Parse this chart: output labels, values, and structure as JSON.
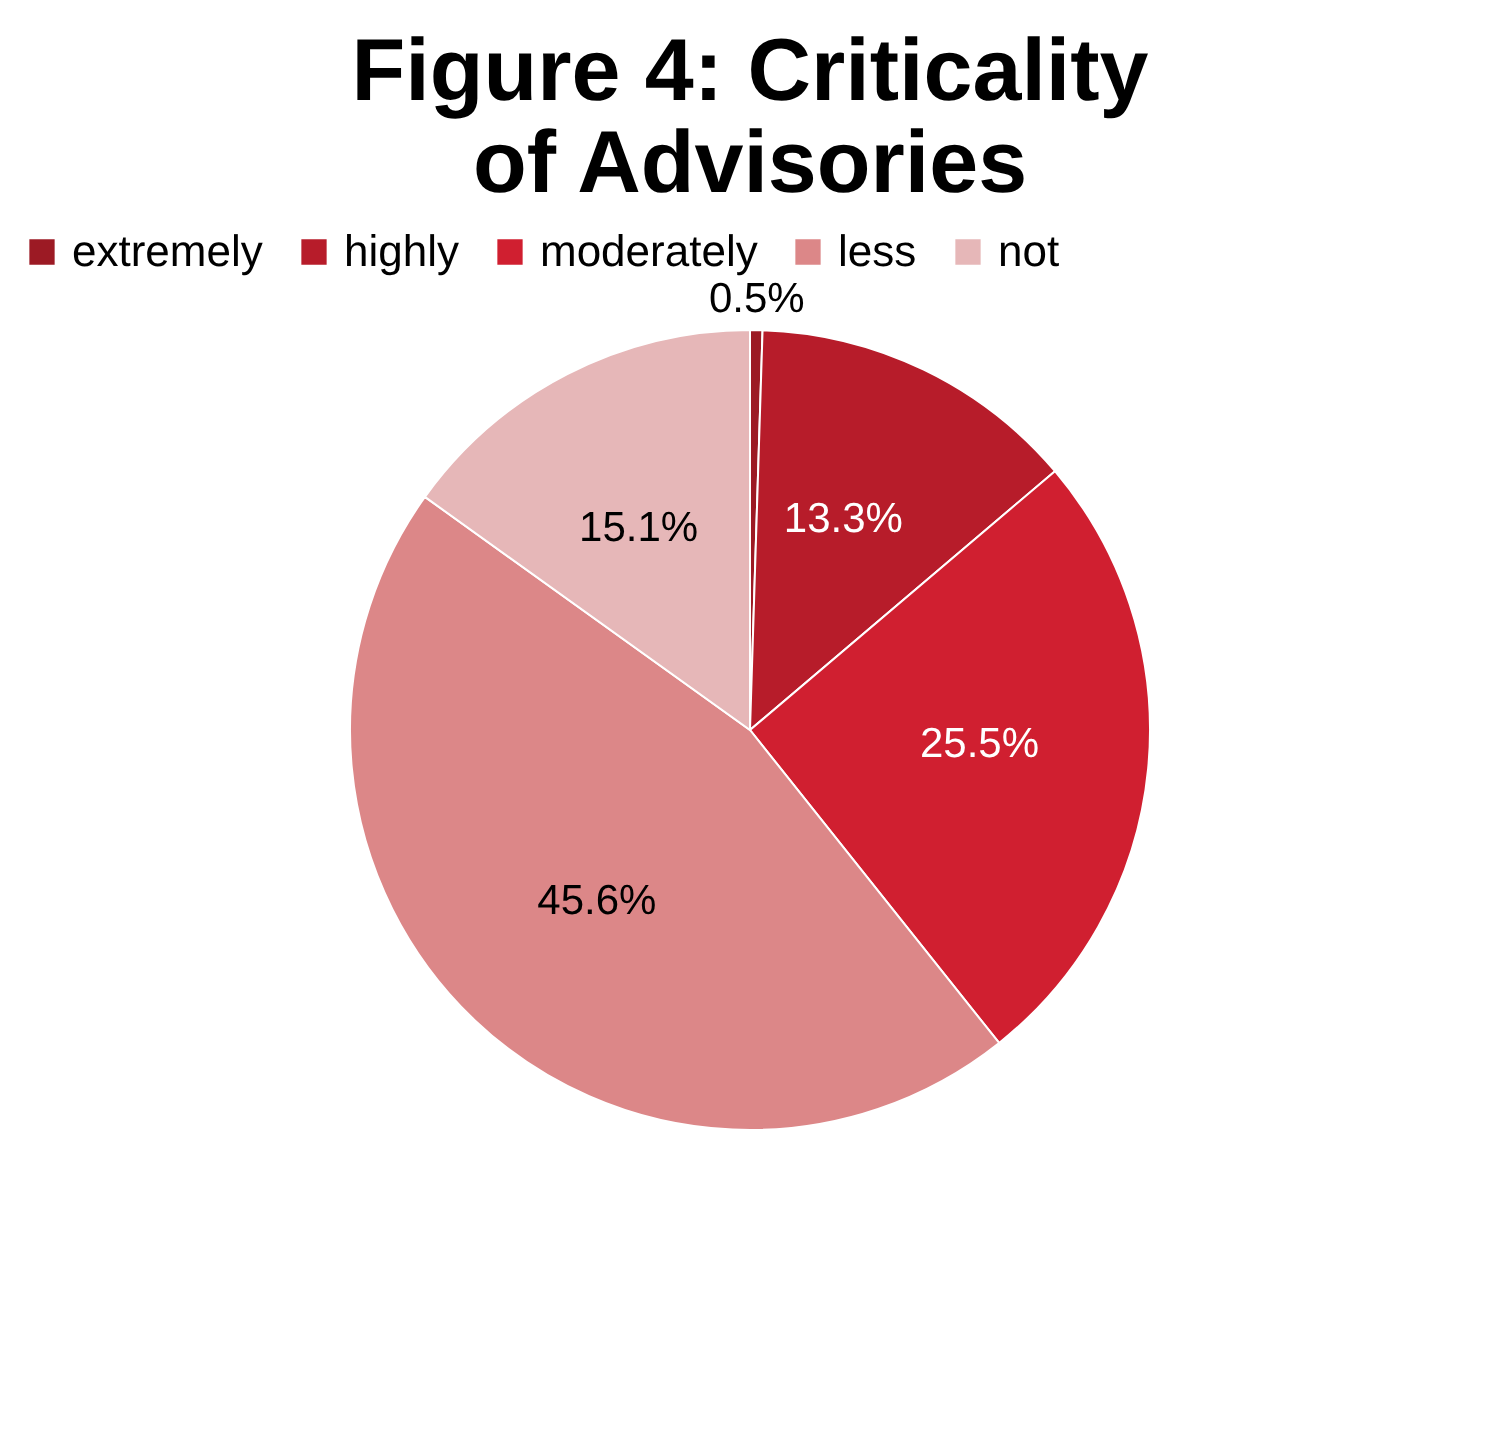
{
  "chart_data": {
    "type": "pie",
    "title": "Figure 4: Criticality of Advisories",
    "categories": [
      "extremely",
      "highly",
      "moderately",
      "less",
      "not"
    ],
    "values": [
      0.5,
      13.3,
      25.5,
      45.6,
      15.1
    ],
    "value_labels": [
      "0.5%",
      "13.3%",
      "25.5%",
      "45.6%",
      "15.1%"
    ],
    "colors": [
      "#9c1a24",
      "#b71c2a",
      "#d01f30",
      "#dc8788",
      "#e6b7b8"
    ],
    "legend": "top"
  }
}
